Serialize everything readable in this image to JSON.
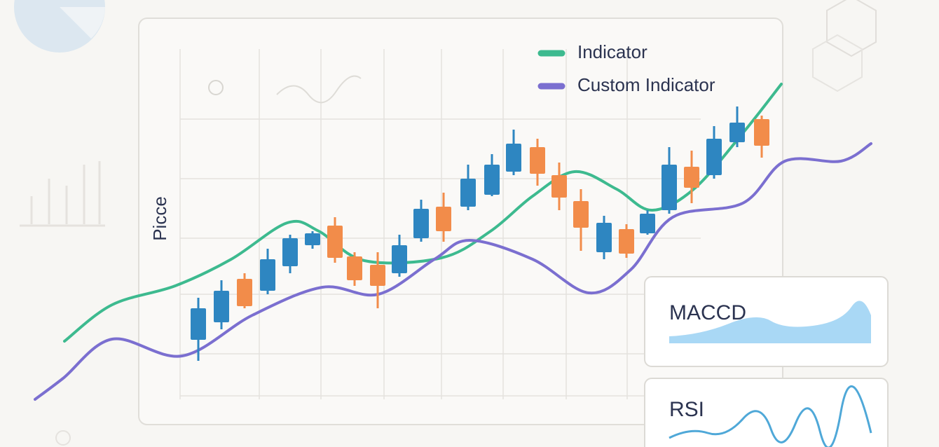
{
  "chart": {
    "y_label": "Picce",
    "legend": [
      {
        "label": "Indicator",
        "color": "#3dba8f"
      },
      {
        "label": "Custom Indicator",
        "color": "#7b6fd0"
      }
    ]
  },
  "panels": [
    {
      "title": "MACCD",
      "color": "#a9d8f5"
    },
    {
      "title": "RSI",
      "color": "#4fa8d8"
    }
  ]
}
